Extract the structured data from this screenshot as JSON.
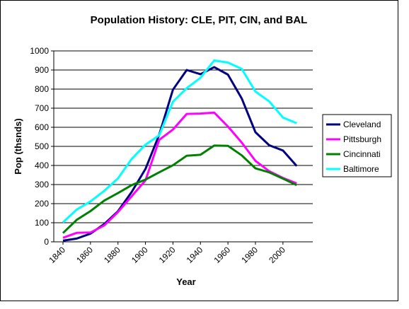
{
  "chart_data": {
    "type": "line",
    "title": "Population History: CLE,  PIT, CIN, and BAL",
    "xlabel": "Year",
    "ylabel": "Pop (thsnds)",
    "ylim": [
      0,
      1000
    ],
    "yticks": [
      "0",
      "100",
      "200",
      "300",
      "400",
      "500",
      "600",
      "700",
      "800",
      "900",
      "1000"
    ],
    "xticks": [
      "1840",
      "1860",
      "1880",
      "1900",
      "1920",
      "1940",
      "1960",
      "1980",
      "2000"
    ],
    "grid": "horizontal",
    "legend_position": "right",
    "x": [
      1840,
      1850,
      1860,
      1870,
      1880,
      1890,
      1900,
      1910,
      1920,
      1930,
      1940,
      1950,
      1960,
      1970,
      1980,
      1990,
      2000,
      2010
    ],
    "series": [
      {
        "name": "Cleveland",
        "color": "#000080",
        "values": [
          6,
          17,
          43,
          93,
          160,
          261,
          382,
          561,
          797,
          900,
          878,
          915,
          876,
          751,
          574,
          506,
          478,
          397
        ]
      },
      {
        "name": "Pittsburgh",
        "color": "#ff00ff",
        "values": [
          21,
          47,
          49,
          86,
          156,
          239,
          322,
          534,
          588,
          670,
          672,
          677,
          604,
          520,
          424,
          370,
          335,
          306
        ]
      },
      {
        "name": "Cincinnati",
        "color": "#008000",
        "values": [
          46,
          115,
          161,
          216,
          255,
          297,
          326,
          364,
          401,
          451,
          456,
          504,
          503,
          453,
          385,
          364,
          331,
          297
        ]
      },
      {
        "name": "Baltimore",
        "color": "#00ffff",
        "values": [
          102,
          169,
          212,
          267,
          332,
          434,
          509,
          558,
          734,
          805,
          859,
          950,
          939,
          906,
          787,
          736,
          651,
          621
        ]
      }
    ]
  }
}
